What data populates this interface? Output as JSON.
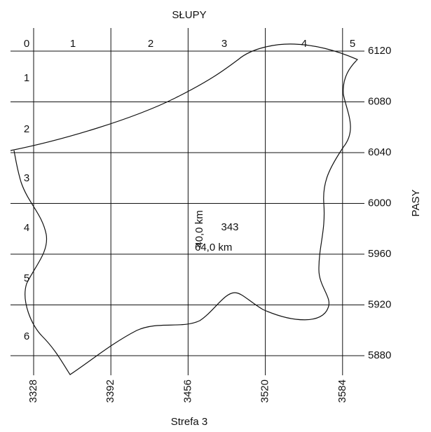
{
  "title": "SŁUPY",
  "side_label": "PASY",
  "footer": "Strefa 3",
  "columns": [
    "0",
    "1",
    "2",
    "3",
    "4",
    "5"
  ],
  "rows": [
    "1",
    "2",
    "3",
    "4",
    "5",
    "6"
  ],
  "x_ticks": [
    3328,
    3392,
    3456,
    3520,
    3584
  ],
  "y_ticks": [
    6120,
    6080,
    6040,
    6000,
    5960,
    5920,
    5880
  ],
  "sheet": {
    "number": "343",
    "width": "64,0 km",
    "height": "40,0 km"
  }
}
